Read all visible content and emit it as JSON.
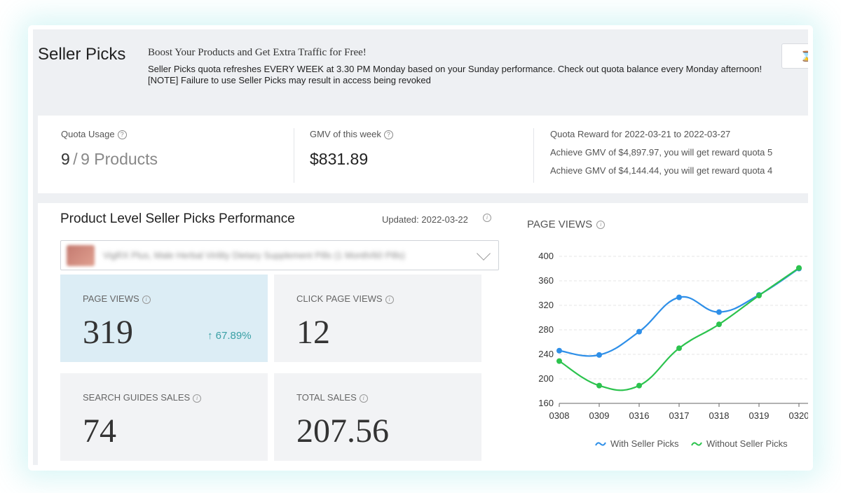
{
  "header": {
    "title": "Seller Picks",
    "headline": "Boost Your Products and Get Extra Traffic for Free!",
    "line1": "Seller Picks quota refreshes EVERY WEEK at 3.30 PM Monday based on your Sunday performance. Check out quota balance every Monday afternoon!",
    "line2": "[NOTE] Failure to use Seller Picks may result in access being revoked",
    "top_right_icon": "medal-icon"
  },
  "quota": {
    "usage_label": "Quota Usage",
    "usage_used": "9",
    "usage_sep": "/",
    "usage_total": "9 Products",
    "gmv_label": "GMV of this week",
    "gmv_value": "$831.89",
    "reward_title": "Quota Reward for 2022-03-21 to 2022-03-27",
    "reward_lines": [
      "Achieve GMV of $4,897.97, you will get reward quota 5",
      "Achieve GMV of $4,144.44, you will get reward quota 4"
    ]
  },
  "performance": {
    "title": "Product Level Seller Picks Performance",
    "updated": "Updated: 2022-03-22",
    "product_name": "VigRX Plus, Male Herbal Virility Dietary Supplement Pills (1 Month/60 Pills)",
    "metrics": [
      {
        "label": "PAGE VIEWS",
        "value": "319",
        "change": "↑ 67.89%"
      },
      {
        "label": "CLICK PAGE VIEWS",
        "value": "12"
      },
      {
        "label": "SEARCH GUIDES SALES",
        "value": "74"
      },
      {
        "label": "TOTAL SALES",
        "value": "207.56"
      }
    ]
  },
  "chart_data": {
    "type": "line",
    "title": "PAGE VIEWS",
    "categories": [
      "0308",
      "0309",
      "0316",
      "0317",
      "0318",
      "0319",
      "0320"
    ],
    "series": [
      {
        "name": "With Seller Picks",
        "color": "#2e8fe8",
        "values": [
          246,
          239,
          277,
          333,
          309,
          337,
          380
        ]
      },
      {
        "name": "Without Seller Picks",
        "color": "#2cc34e",
        "values": [
          229,
          189,
          189,
          250,
          289,
          336,
          381
        ]
      }
    ],
    "ylim": [
      160,
      400
    ],
    "yticks": [
      160,
      200,
      240,
      280,
      320,
      360,
      400
    ],
    "grid": true,
    "legend": "bottom"
  }
}
